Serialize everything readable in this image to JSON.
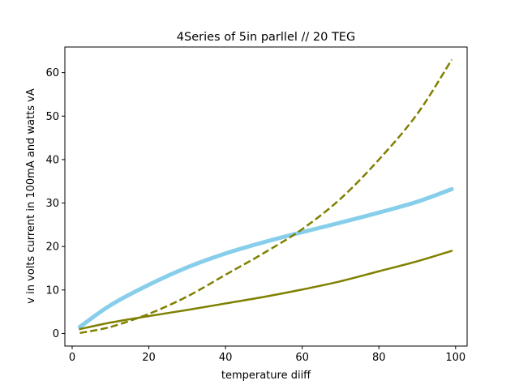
{
  "chart_data": {
    "type": "line",
    "title": "4Series  of 5in parllel // 20 TEG",
    "xlabel": "temperature diiff",
    "ylabel": "v in volts current in 100mA and watts vA",
    "xlim": [
      -1.9,
      103
    ],
    "ylim": [
      -2.9,
      65.9
    ],
    "xticks": [
      0,
      20,
      40,
      60,
      80,
      100
    ],
    "yticks": [
      0,
      10,
      20,
      30,
      40,
      50,
      60
    ],
    "grid": false,
    "legend": "none",
    "series": [
      {
        "style": "solid-thick",
        "color": "#87ceeb",
        "x": [
          2,
          10,
          20,
          30,
          40,
          50,
          60,
          70,
          80,
          90,
          99
        ],
        "y": [
          1.5,
          6.5,
          11.2,
          15.2,
          18.4,
          21.0,
          23.3,
          25.5,
          27.8,
          30.3,
          33.2
        ]
      },
      {
        "style": "solid",
        "color": "#808000",
        "x": [
          2,
          10,
          20,
          30,
          40,
          50,
          60,
          70,
          80,
          90,
          99
        ],
        "y": [
          1.0,
          2.5,
          4.0,
          5.4,
          6.9,
          8.4,
          10.1,
          12.0,
          14.3,
          16.6,
          19.0
        ]
      },
      {
        "style": "dashed",
        "color": "#808000",
        "x": [
          2,
          10,
          20,
          30,
          40,
          50,
          60,
          70,
          80,
          90,
          99
        ],
        "y": [
          0.1,
          1.5,
          4.5,
          8.5,
          13.5,
          18.5,
          24.0,
          31.0,
          40.0,
          50.5,
          63.0
        ]
      }
    ]
  }
}
